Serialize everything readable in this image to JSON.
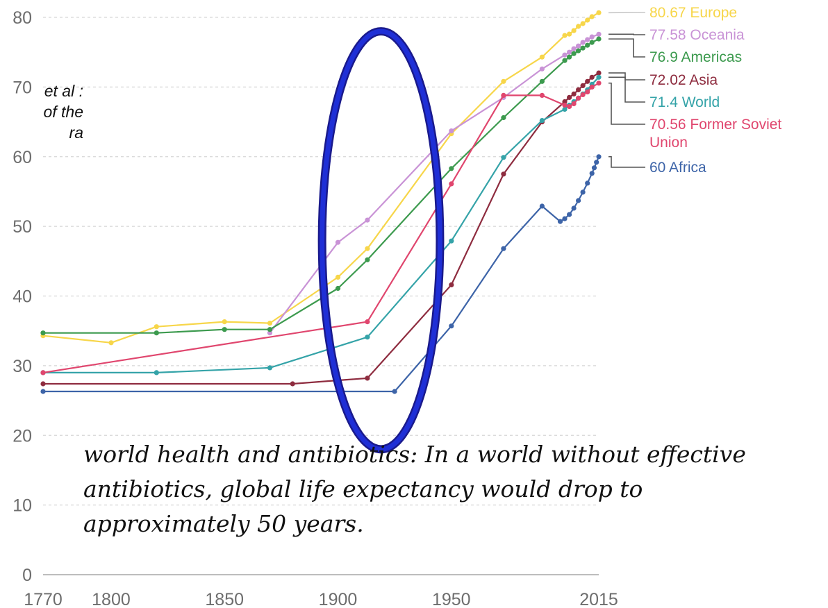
{
  "side_text": [
    "et al :",
    "of the",
    "ra"
  ],
  "caption": {
    "lead": "world health and antibiotics",
    "sep": ":",
    "body": " In a world without effective antibiotics, global life expectancy would drop to approximately 50 years",
    "end": "."
  },
  "highlight": {
    "shape": "ellipse",
    "color": "#1f2fd6",
    "x_range": [
      1893,
      1945
    ],
    "y_range": [
      18,
      78
    ]
  },
  "chart_data": {
    "type": "line",
    "xlim": [
      1770,
      2015
    ],
    "ylim": [
      0,
      80
    ],
    "x_ticks": [
      1770,
      1800,
      1850,
      1900,
      1950,
      2015
    ],
    "y_ticks": [
      0,
      10,
      20,
      30,
      40,
      50,
      60,
      70,
      80
    ],
    "grid": "horizontal dashed",
    "legend": "end-of-line labels at right",
    "series": [
      {
        "name": "Europe",
        "color": "#f7d64a",
        "end_label": "80.67 Europe",
        "points": [
          [
            1770,
            34.3
          ],
          [
            1800,
            33.3
          ],
          [
            1820,
            35.6
          ],
          [
            1850,
            36.3
          ],
          [
            1870,
            36.1
          ],
          [
            1900,
            42.7
          ],
          [
            1913,
            46.8
          ],
          [
            1950,
            63.3
          ],
          [
            1973,
            70.8
          ],
          [
            1990,
            74.3
          ],
          [
            2000,
            77.4
          ],
          [
            2002,
            77.6
          ],
          [
            2004,
            78.1
          ],
          [
            2006,
            78.7
          ],
          [
            2008,
            79.1
          ],
          [
            2010,
            79.6
          ],
          [
            2012,
            80.1
          ],
          [
            2015,
            80.67
          ]
        ]
      },
      {
        "name": "Oceania",
        "color": "#c993d6",
        "end_label": "77.58 Oceania",
        "points": [
          [
            1870,
            34.7
          ],
          [
            1900,
            47.7
          ],
          [
            1913,
            50.9
          ],
          [
            1950,
            63.7
          ],
          [
            1973,
            68.5
          ],
          [
            1990,
            72.6
          ],
          [
            2000,
            74.6
          ],
          [
            2002,
            75.0
          ],
          [
            2004,
            75.5
          ],
          [
            2006,
            75.9
          ],
          [
            2008,
            76.4
          ],
          [
            2010,
            76.8
          ],
          [
            2012,
            77.2
          ],
          [
            2015,
            77.58
          ]
        ]
      },
      {
        "name": "Americas",
        "color": "#3c9a4e",
        "end_label": "76.9 Americas",
        "points": [
          [
            1770,
            34.7
          ],
          [
            1820,
            34.7
          ],
          [
            1850,
            35.2
          ],
          [
            1870,
            35.2
          ],
          [
            1900,
            41.1
          ],
          [
            1913,
            45.2
          ],
          [
            1950,
            58.3
          ],
          [
            1973,
            65.6
          ],
          [
            1990,
            70.8
          ],
          [
            2000,
            73.8
          ],
          [
            2002,
            74.3
          ],
          [
            2004,
            74.8
          ],
          [
            2006,
            75.2
          ],
          [
            2008,
            75.6
          ],
          [
            2010,
            76.0
          ],
          [
            2012,
            76.4
          ],
          [
            2015,
            76.9
          ]
        ]
      },
      {
        "name": "Asia",
        "color": "#8e2c3f",
        "end_label": "72.02 Asia",
        "points": [
          [
            1770,
            27.4
          ],
          [
            1880,
            27.4
          ],
          [
            1900,
            27.9
          ],
          [
            1913,
            28.2
          ],
          [
            1950,
            41.6
          ],
          [
            1973,
            57.5
          ],
          [
            1990,
            65.0
          ],
          [
            2000,
            67.9
          ],
          [
            2002,
            68.5
          ],
          [
            2004,
            69.0
          ],
          [
            2006,
            69.6
          ],
          [
            2008,
            70.2
          ],
          [
            2010,
            70.8
          ],
          [
            2012,
            71.4
          ],
          [
            2015,
            72.02
          ]
        ]
      },
      {
        "name": "World",
        "color": "#34a3a8",
        "end_label": "71.4 World",
        "points": [
          [
            1770,
            29.0
          ],
          [
            1820,
            29.0
          ],
          [
            1870,
            29.7
          ],
          [
            1913,
            34.1
          ],
          [
            1950,
            47.9
          ],
          [
            1973,
            59.9
          ],
          [
            1990,
            65.2
          ],
          [
            2000,
            66.8
          ],
          [
            2002,
            67.4
          ],
          [
            2004,
            67.9
          ],
          [
            2006,
            68.4
          ],
          [
            2008,
            69.0
          ],
          [
            2010,
            69.6
          ],
          [
            2012,
            70.4
          ],
          [
            2015,
            71.4
          ]
        ]
      },
      {
        "name": "Former Soviet Union",
        "color": "#e0466e",
        "end_label": "70.56 Former Soviet Union",
        "points": [
          [
            1770,
            29.0
          ],
          [
            1913,
            36.3
          ],
          [
            1950,
            56.1
          ],
          [
            1973,
            68.8
          ],
          [
            1990,
            68.8
          ],
          [
            2000,
            67.4
          ],
          [
            2002,
            67.2
          ],
          [
            2004,
            67.6
          ],
          [
            2006,
            68.4
          ],
          [
            2008,
            68.9
          ],
          [
            2010,
            69.3
          ],
          [
            2012,
            70.0
          ],
          [
            2015,
            70.56
          ]
        ]
      },
      {
        "name": "Africa",
        "color": "#3d64a8",
        "end_label": "60 Africa",
        "points": [
          [
            1770,
            26.3
          ],
          [
            1925,
            26.3
          ],
          [
            1950,
            35.7
          ],
          [
            1973,
            46.8
          ],
          [
            1990,
            52.9
          ],
          [
            1998,
            50.7
          ],
          [
            2000,
            51.1
          ],
          [
            2002,
            51.7
          ],
          [
            2004,
            52.6
          ],
          [
            2006,
            53.7
          ],
          [
            2008,
            54.9
          ],
          [
            2010,
            56.2
          ],
          [
            2012,
            57.6
          ],
          [
            2013,
            58.4
          ],
          [
            2014,
            59.2
          ],
          [
            2015,
            60.0
          ]
        ]
      }
    ]
  }
}
